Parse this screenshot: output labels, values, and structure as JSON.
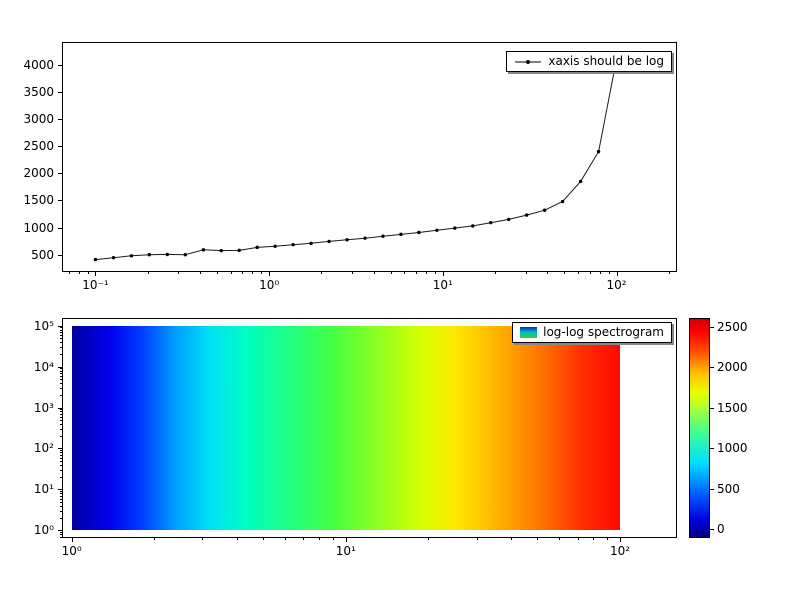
{
  "figure": {
    "background": "#ffffff"
  },
  "chart_data": [
    {
      "name": "line-plot",
      "type": "line",
      "title": "",
      "xlabel": "",
      "ylabel": "",
      "xscale": "log",
      "yscale": "linear",
      "xlim": [
        0.065,
        220
      ],
      "ylim": [
        200,
        4400
      ],
      "xticks": [
        0.1,
        1,
        10,
        100
      ],
      "xtick_labels": [
        "10⁻¹",
        "10⁰",
        "10¹",
        "10²"
      ],
      "yticks": [
        500,
        1000,
        1500,
        2000,
        2500,
        3000,
        3500,
        4000
      ],
      "grid": false,
      "line_color": "#1a1a1a",
      "marker": "dot",
      "legend": {
        "label": "xaxis should be log",
        "marker": "line-with-dot",
        "position": "upper-right"
      },
      "series": [
        {
          "name": "xaxis should be log",
          "x": [
            0.1,
            0.127,
            0.161,
            0.204,
            0.259,
            0.329,
            0.418,
            0.53,
            0.672,
            0.853,
            1.082,
            1.374,
            1.743,
            2.212,
            2.807,
            3.562,
            4.52,
            5.736,
            7.279,
            9.237,
            11.72,
            14.87,
            18.87,
            23.95,
            30.39,
            38.57,
            48.94,
            62.1,
            78.8,
            100
          ],
          "y": [
            410,
            445,
            480,
            500,
            505,
            500,
            590,
            575,
            580,
            635,
            655,
            685,
            710,
            745,
            775,
            805,
            840,
            875,
            910,
            950,
            990,
            1030,
            1090,
            1150,
            1230,
            1320,
            1480,
            1850,
            2400,
            4100
          ]
        }
      ]
    },
    {
      "name": "spectrogram",
      "type": "heatmap",
      "title": "",
      "xscale": "log",
      "yscale": "log",
      "xlim": [
        0.93,
        160
      ],
      "ylim_exp": [
        -0.16,
        5.16
      ],
      "extent": {
        "x": [
          1,
          100
        ],
        "y_exp": [
          0,
          5
        ]
      },
      "xticks": [
        1,
        10,
        100
      ],
      "xtick_labels": [
        "10⁰",
        "10¹",
        "10²"
      ],
      "ytick_exps": [
        0,
        1,
        2,
        3,
        4,
        5
      ],
      "ytick_labels": [
        "10⁰",
        "10¹",
        "10²",
        "10³",
        "10⁴",
        "10⁵"
      ],
      "legend": {
        "label": "log-log spectrogram",
        "position": "upper-right",
        "patch_colors": [
          "#0828c8",
          "#00c0c0",
          "#40c830"
        ]
      },
      "gradient": [
        {
          "pos": 0,
          "color": "#0000a0"
        },
        {
          "pos": 7,
          "color": "#0000f0"
        },
        {
          "pos": 13,
          "color": "#0040ff"
        },
        {
          "pos": 19,
          "color": "#00a0ff"
        },
        {
          "pos": 25,
          "color": "#00e0f8"
        },
        {
          "pos": 32,
          "color": "#00ffc0"
        },
        {
          "pos": 40,
          "color": "#20ff80"
        },
        {
          "pos": 48,
          "color": "#48ff40"
        },
        {
          "pos": 56,
          "color": "#90ff20"
        },
        {
          "pos": 64,
          "color": "#d8ff00"
        },
        {
          "pos": 70,
          "color": "#ffe800"
        },
        {
          "pos": 78,
          "color": "#ffb000"
        },
        {
          "pos": 86,
          "color": "#ff7000"
        },
        {
          "pos": 93,
          "color": "#ff3000"
        },
        {
          "pos": 100,
          "color": "#ff0800"
        }
      ],
      "colorbar": {
        "min": -100,
        "max": 2600,
        "ticks": [
          0,
          500,
          1000,
          1500,
          2000,
          2500
        ],
        "colormap": "jet",
        "stops": [
          {
            "pos": 0,
            "color": "#000080"
          },
          {
            "pos": 8,
            "color": "#0000e0"
          },
          {
            "pos": 20,
            "color": "#0060ff"
          },
          {
            "pos": 34,
            "color": "#00e0ff"
          },
          {
            "pos": 48,
            "color": "#40ff90"
          },
          {
            "pos": 58,
            "color": "#a0ff40"
          },
          {
            "pos": 66,
            "color": "#e8ff00"
          },
          {
            "pos": 75,
            "color": "#ffc000"
          },
          {
            "pos": 85,
            "color": "#ff5000"
          },
          {
            "pos": 94,
            "color": "#ff0000"
          },
          {
            "pos": 100,
            "color": "#d00000"
          }
        ]
      }
    }
  ]
}
